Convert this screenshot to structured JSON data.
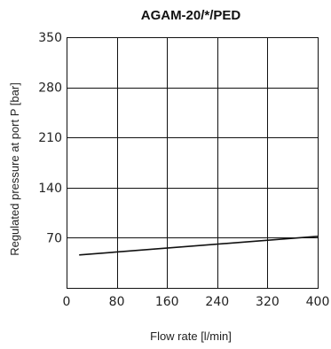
{
  "chart_data": {
    "type": "line",
    "title": "AGAM-20/*/PED",
    "xlabel": "Flow rate [l/min]",
    "ylabel": "Regulated pressure at port P [bar]",
    "xlim": [
      0,
      400
    ],
    "ylim": [
      0,
      350
    ],
    "x_ticks": [
      "0",
      "80",
      "160",
      "240",
      "320",
      "400"
    ],
    "y_ticks": [
      "70",
      "140",
      "210",
      "280",
      "350"
    ],
    "grid": true,
    "series": [
      {
        "x": [
          20,
          400
        ],
        "y": [
          46,
          72
        ],
        "color": "#111111"
      }
    ]
  }
}
